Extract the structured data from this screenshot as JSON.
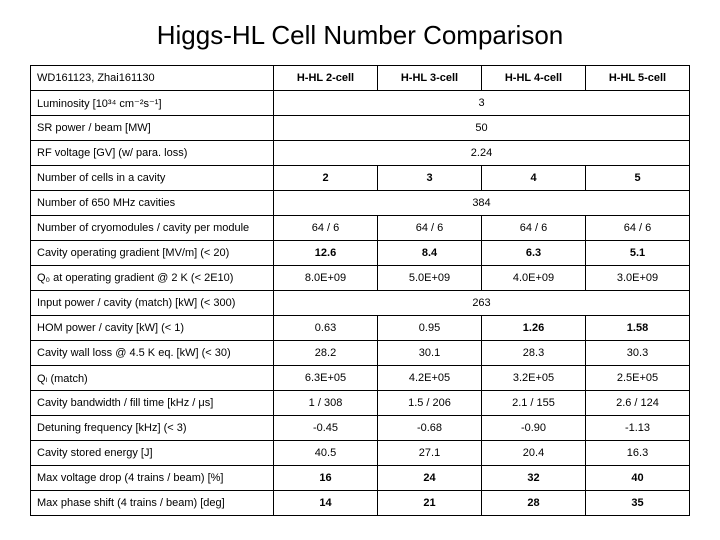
{
  "title": "Higgs-HL Cell Number Comparison",
  "corner": "WD161123, Zhai161130",
  "headers": [
    "H-HL 2-cell",
    "H-HL 3-cell",
    "H-HL 4-cell",
    "H-HL 5-cell"
  ],
  "rows": [
    {
      "label": "Luminosity [10³⁴ cm⁻²s⁻¹]",
      "span": 4,
      "value": "3",
      "bold": false
    },
    {
      "label": "SR power / beam [MW]",
      "span": 4,
      "value": "50",
      "bold": false
    },
    {
      "label": "RF voltage [GV] (w/ para. loss)",
      "span": 4,
      "value": "2.24",
      "bold": false
    },
    {
      "label": "Number of cells in a cavity",
      "cells": [
        "2",
        "3",
        "4",
        "5"
      ],
      "bold": true
    },
    {
      "label": "Number of 650 MHz cavities",
      "span": 4,
      "value": "384",
      "bold": false
    },
    {
      "label": "Number of cryomodules / cavity per module",
      "cells": [
        "64 / 6",
        "64 / 6",
        "64 / 6",
        "64 / 6"
      ],
      "bold": false
    },
    {
      "label": "Cavity operating gradient [MV/m] (< 20)",
      "cells": [
        "12.6",
        "8.4",
        "6.3",
        "5.1"
      ],
      "bold": true
    },
    {
      "label": "Q₀ at operating gradient @ 2 K (< 2E10)",
      "cells": [
        "8.0E+09",
        "5.0E+09",
        "4.0E+09",
        "3.0E+09"
      ],
      "bold": false
    },
    {
      "label": "Input power / cavity (match) [kW] (< 300)",
      "span": 4,
      "value": "263",
      "bold": false
    },
    {
      "label": "HOM power / cavity [kW] (< 1)",
      "cells": [
        "0.63",
        "0.95",
        "1.26",
        "1.58"
      ],
      "boldcells": [
        false,
        false,
        true,
        true
      ]
    },
    {
      "label": "Cavity wall loss @ 4.5 K eq. [kW] (< 30)",
      "cells": [
        "28.2",
        "30.1",
        "28.3",
        "30.3"
      ],
      "bold": false
    },
    {
      "label": "Qₗ (match)",
      "cells": [
        "6.3E+05",
        "4.2E+05",
        "3.2E+05",
        "2.5E+05"
      ],
      "bold": false
    },
    {
      "label": "Cavity bandwidth / fill time [kHz / μs]",
      "cells": [
        "1 / 308",
        "1.5 / 206",
        "2.1 / 155",
        "2.6 / 124"
      ],
      "bold": false
    },
    {
      "label": "Detuning frequency [kHz] (< 3)",
      "cells": [
        "-0.45",
        "-0.68",
        "-0.90",
        "-1.13"
      ],
      "bold": false
    },
    {
      "label": "Cavity stored energy [J]",
      "cells": [
        "40.5",
        "27.1",
        "20.4",
        "16.3"
      ],
      "bold": false
    },
    {
      "label": "Max voltage drop (4 trains / beam) [%]",
      "cells": [
        "16",
        "24",
        "32",
        "40"
      ],
      "bold": true
    },
    {
      "label": "Max phase shift (4 trains / beam) [deg]",
      "cells": [
        "14",
        "21",
        "28",
        "35"
      ],
      "bold": true
    }
  ]
}
